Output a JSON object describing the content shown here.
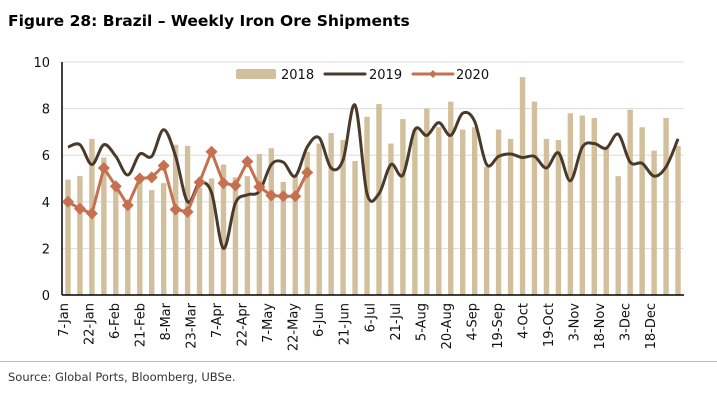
{
  "chart_data": {
    "type": "bar+line",
    "title": "Figure 28: Brazil – Weekly Iron Ore Shipments",
    "xlabel": "",
    "ylabel": "",
    "ylim": [
      0,
      10
    ],
    "yticks": [
      "0",
      "2",
      "4",
      "6",
      "8",
      "10"
    ],
    "grid": true,
    "legend_position": "top",
    "x_tick_labels": [
      "7-Jan",
      "22-Jan",
      "6-Feb",
      "21-Feb",
      "8-Mar",
      "23-Mar",
      "7-Apr",
      "22-Apr",
      "7-May",
      "22-May",
      "6-Jun",
      "21-Jun",
      "6-Jul",
      "21-Jul",
      "5-Aug",
      "20-Aug",
      "4-Sep",
      "19-Sep",
      "4-Oct",
      "19-Oct",
      "3-Nov",
      "18-Nov",
      "3-Dec",
      "18-Dec"
    ],
    "series": [
      {
        "name": "2018",
        "kind": "bar",
        "color": "#d2bf9b",
        "values": [
          4.95,
          5.1,
          6.7,
          5.9,
          4.6,
          4.0,
          4.9,
          4.5,
          4.8,
          6.45,
          6.4,
          4.6,
          5.0,
          5.6,
          5.05,
          5.1,
          6.05,
          6.3,
          4.85,
          5.1,
          6.15,
          6.5,
          6.95,
          6.65,
          5.75,
          7.65,
          8.2,
          6.5,
          7.55,
          7.1,
          8.0,
          7.2,
          8.3,
          7.1,
          7.2,
          5.5,
          7.1,
          6.7,
          9.35,
          8.3,
          6.7,
          6.65,
          7.8,
          7.7,
          7.6,
          6.3,
          5.1,
          7.95,
          7.2,
          6.2,
          7.6,
          6.4
        ]
      },
      {
        "name": "2019",
        "kind": "line",
        "color": "#4a3a2c",
        "values": [
          6.35,
          6.45,
          5.6,
          6.45,
          5.95,
          5.15,
          6.05,
          5.95,
          7.1,
          5.95,
          4.0,
          4.8,
          4.4,
          2.0,
          3.95,
          4.3,
          4.45,
          5.6,
          5.7,
          5.1,
          6.35,
          6.75,
          5.45,
          5.8,
          8.15,
          4.35,
          4.35,
          5.6,
          5.15,
          7.1,
          6.85,
          7.4,
          6.85,
          7.8,
          7.45,
          5.6,
          5.95,
          6.05,
          5.9,
          5.95,
          5.45,
          6.1,
          4.9,
          6.35,
          6.5,
          6.3,
          6.9,
          5.7,
          5.65,
          5.1,
          5.5,
          6.7
        ]
      },
      {
        "name": "2020",
        "kind": "line-marker",
        "color": "#c57150",
        "values": [
          4.0,
          3.7,
          3.5,
          5.45,
          4.67,
          3.85,
          5.0,
          5.05,
          5.55,
          3.67,
          3.57,
          4.84,
          6.15,
          4.8,
          4.7,
          5.73,
          4.64,
          4.27,
          4.24,
          4.24,
          5.26
        ]
      }
    ]
  },
  "source": "Source: Global Ports, Bloomberg, UBSe."
}
